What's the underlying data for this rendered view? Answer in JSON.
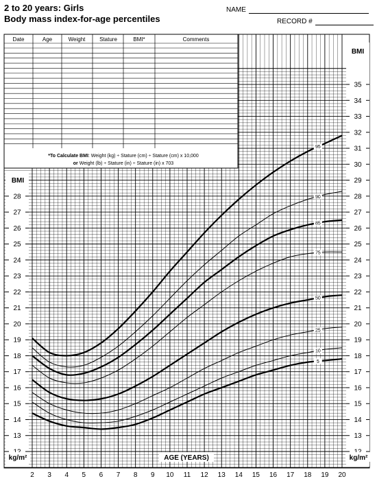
{
  "header": {
    "title_line1": "2 to 20 years: Girls",
    "title_line2": "Body mass index-for-age percentiles",
    "name_label": "NAME",
    "record_label": "RECORD #"
  },
  "table": {
    "columns": [
      "Date",
      "Age",
      "Weight",
      "Stature",
      "BMI*",
      "Comments"
    ],
    "note_line1_bold": "*To Calculate BMI",
    "note_line1_rest": ": Weight (kg) ÷ Stature (cm) ÷ Stature (cm) x 10,000",
    "note_line2_bold": "or",
    "note_line2_rest": " Weight (lb) ÷ Stature (in) ÷ Stature (in) x 703"
  },
  "chart_data": {
    "type": "line",
    "xlabel": "AGE (YEARS)",
    "ylabel_left": "BMI",
    "ylabel_right": "BMI",
    "unit_label": "kg/m²",
    "xlim": [
      2,
      20
    ],
    "ylim": [
      11,
      36
    ],
    "x_ticks": [
      2,
      3,
      4,
      5,
      6,
      7,
      8,
      9,
      10,
      11,
      12,
      13,
      14,
      15,
      16,
      17,
      18,
      19,
      20
    ],
    "y_ticks": [
      12,
      13,
      14,
      15,
      16,
      17,
      18,
      19,
      20,
      21,
      22,
      23,
      24,
      25,
      26,
      27,
      28,
      29,
      30,
      31,
      32,
      33,
      34,
      35
    ],
    "grid": true,
    "x": [
      2,
      3,
      4,
      5,
      6,
      7,
      8,
      9,
      10,
      11,
      12,
      13,
      14,
      15,
      16,
      17,
      18,
      19,
      20
    ],
    "series": [
      {
        "name": "95",
        "values": [
          19.1,
          18.2,
          18.0,
          18.2,
          18.8,
          19.7,
          20.8,
          22.0,
          23.3,
          24.5,
          25.7,
          26.8,
          27.8,
          28.7,
          29.5,
          30.2,
          30.8,
          31.3,
          31.8
        ]
      },
      {
        "name": "90",
        "values": [
          18.5,
          17.6,
          17.3,
          17.4,
          17.9,
          18.6,
          19.5,
          20.5,
          21.6,
          22.7,
          23.7,
          24.6,
          25.5,
          26.2,
          26.9,
          27.4,
          27.8,
          28.1,
          28.3
        ]
      },
      {
        "name": "85",
        "values": [
          18.0,
          17.2,
          16.8,
          16.9,
          17.3,
          17.9,
          18.7,
          19.6,
          20.6,
          21.6,
          22.6,
          23.4,
          24.2,
          24.9,
          25.5,
          25.9,
          26.2,
          26.4,
          26.5
        ]
      },
      {
        "name": "75",
        "values": [
          17.4,
          16.6,
          16.3,
          16.3,
          16.6,
          17.1,
          17.8,
          18.6,
          19.5,
          20.4,
          21.2,
          22.0,
          22.7,
          23.3,
          23.8,
          24.2,
          24.4,
          24.5,
          24.5
        ]
      },
      {
        "name": "50",
        "values": [
          16.5,
          15.7,
          15.3,
          15.2,
          15.3,
          15.6,
          16.1,
          16.7,
          17.4,
          18.1,
          18.8,
          19.5,
          20.1,
          20.6,
          21.0,
          21.3,
          21.5,
          21.7,
          21.8
        ]
      },
      {
        "name": "25",
        "values": [
          15.7,
          15.0,
          14.6,
          14.4,
          14.4,
          14.6,
          15.0,
          15.5,
          16.0,
          16.6,
          17.2,
          17.7,
          18.2,
          18.6,
          19.0,
          19.3,
          19.5,
          19.7,
          19.8
        ]
      },
      {
        "name": "10",
        "values": [
          15.1,
          14.4,
          14.0,
          13.8,
          13.8,
          13.9,
          14.2,
          14.6,
          15.1,
          15.6,
          16.1,
          16.6,
          17.0,
          17.4,
          17.7,
          18.0,
          18.2,
          18.4,
          18.5
        ]
      },
      {
        "name": "5",
        "values": [
          14.4,
          13.9,
          13.6,
          13.5,
          13.4,
          13.5,
          13.7,
          14.1,
          14.6,
          15.1,
          15.6,
          16.0,
          16.4,
          16.8,
          17.1,
          17.4,
          17.6,
          17.7,
          17.8
        ]
      }
    ],
    "heavy_series": [
      "95",
      "85",
      "50",
      "5"
    ],
    "colors": {
      "line": "#000000",
      "grid": "#000000",
      "background": "#ffffff"
    }
  }
}
